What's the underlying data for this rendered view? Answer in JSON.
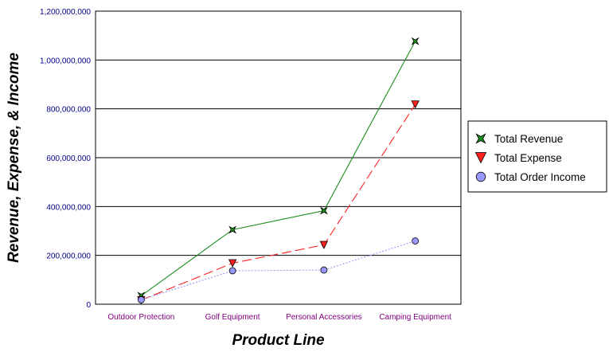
{
  "chart_data": {
    "type": "line",
    "categories": [
      "Outdoor Protection",
      "Golf Equipment",
      "Personal Accessories",
      "Camping Equipment"
    ],
    "xlabel": "Product Line",
    "ylabel": "Revenue, Expense, & Income",
    "ylim": [
      0,
      1200000000
    ],
    "yticks": [
      0,
      200000000,
      400000000,
      600000000,
      800000000,
      1000000000,
      1200000000
    ],
    "ytick_labels": [
      "0",
      "200,000,000",
      "400,000,000",
      "600,000,000",
      "800,000,000",
      "1,000,000,000",
      "1,200,000,000"
    ],
    "grid": true,
    "legend_position": "right",
    "series": [
      {
        "name": "Total Revenue",
        "values": [
          35000000,
          305000000,
          383000000,
          1077000000
        ],
        "color": "#1a8c1a",
        "marker": "star4",
        "line": "solid"
      },
      {
        "name": "Total Expense",
        "values": [
          17000000,
          168000000,
          243000000,
          818000000
        ],
        "color": "#ff2020",
        "marker": "triangle-down",
        "line": "dashed"
      },
      {
        "name": "Total Order Income",
        "values": [
          18000000,
          137000000,
          140000000,
          259000000
        ],
        "color": "#9999ff",
        "marker": "circle",
        "line": "dotted"
      }
    ]
  }
}
